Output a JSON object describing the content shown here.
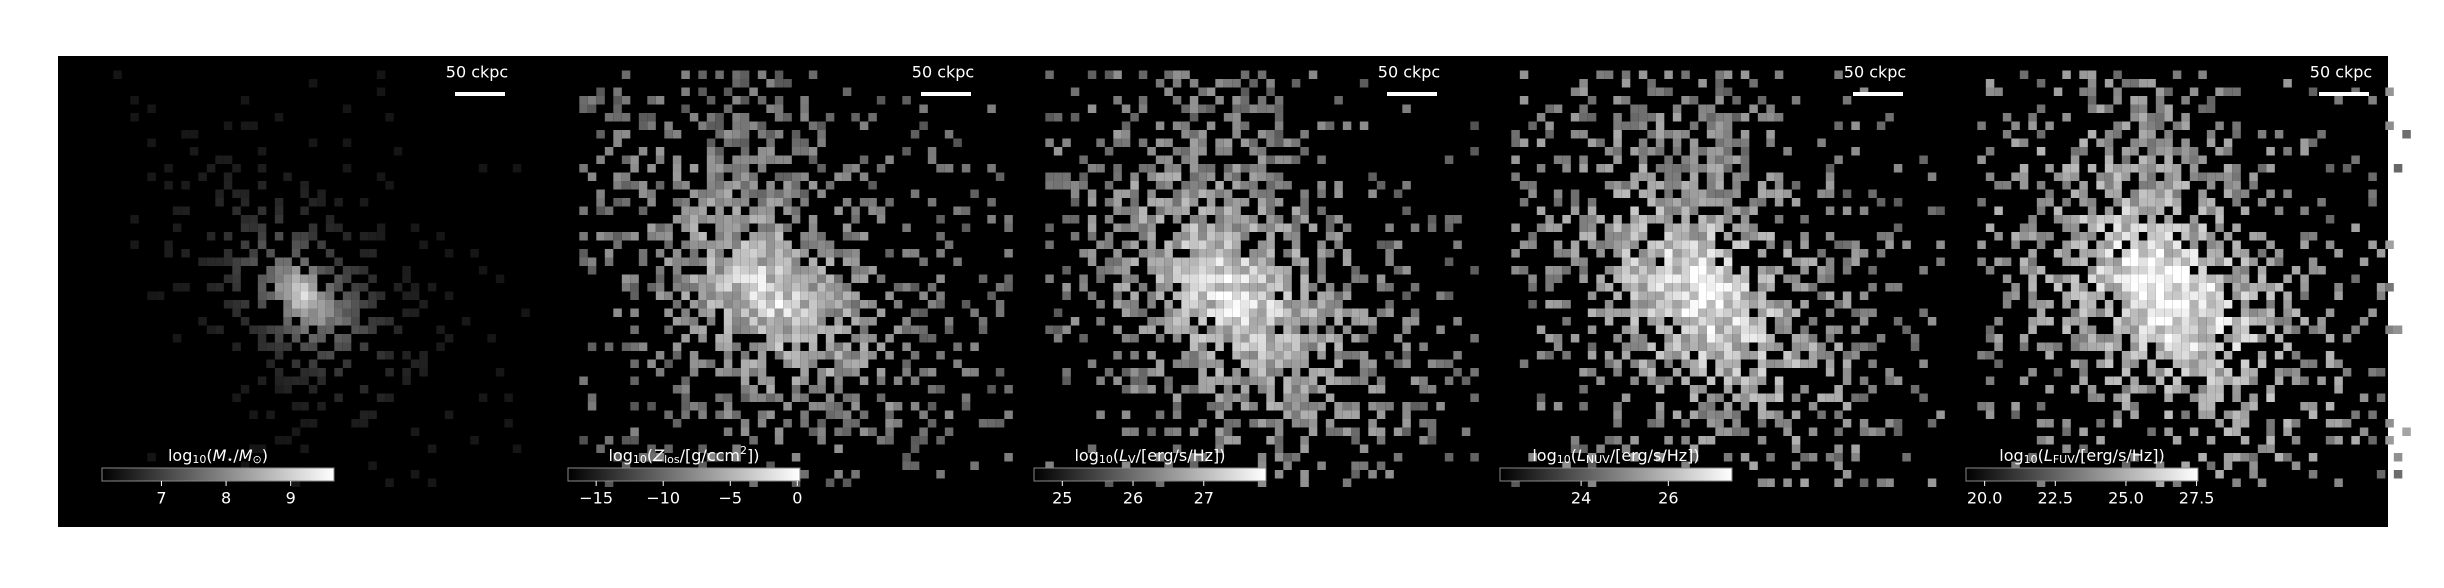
{
  "panels": [
    {
      "scale_bar": "50 ckpc",
      "colorbar": {
        "label": [
          {
            "text": "log"
          },
          {
            "text": "10",
            "style": "sub"
          },
          {
            "text": "("
          },
          {
            "text": "M",
            "style": "italic"
          },
          {
            "text": "⋆",
            "style": "sub"
          },
          {
            "text": "/"
          },
          {
            "text": "M",
            "style": "italic"
          },
          {
            "text": "⊙",
            "style": "sub"
          },
          {
            "text": ")"
          }
        ],
        "lim": [
          6.08,
          9.67
        ],
        "ticks": [
          7,
          8,
          9
        ]
      }
    },
    {
      "scale_bar": "50 ckpc",
      "colorbar": {
        "label": [
          {
            "text": "log"
          },
          {
            "text": "10",
            "style": "sub"
          },
          {
            "text": "("
          },
          {
            "text": "Z",
            "style": "italic"
          },
          {
            "text": "los",
            "style": "sub"
          },
          {
            "text": "/[g/ccm"
          },
          {
            "text": "2",
            "style": "sup"
          },
          {
            "text": "])"
          }
        ],
        "lim": [
          -17.1,
          0.2
        ],
        "ticks": [
          {
            "value": -15,
            "label": "−15"
          },
          {
            "value": -10,
            "label": "−10"
          },
          {
            "value": -5,
            "label": "−5"
          },
          0
        ]
      }
    },
    {
      "scale_bar": "50 ckpc",
      "colorbar": {
        "label": [
          {
            "text": "log"
          },
          {
            "text": "10",
            "style": "sub"
          },
          {
            "text": "("
          },
          {
            "text": "L",
            "style": "italic"
          },
          {
            "text": "V",
            "style": "sub"
          },
          {
            "text": "/[erg/s/Hz])"
          }
        ],
        "lim": [
          24.6,
          27.88
        ],
        "ticks": [
          25,
          26,
          27
        ]
      }
    },
    {
      "scale_bar": "50 ckpc",
      "colorbar": {
        "label": [
          {
            "text": "log"
          },
          {
            "text": "10",
            "style": "sub"
          },
          {
            "text": "("
          },
          {
            "text": "L",
            "style": "italic"
          },
          {
            "text": "NUV",
            "style": "sub"
          },
          {
            "text": "/[erg/s/Hz])"
          }
        ],
        "lim": [
          22.14,
          27.46
        ],
        "ticks": [
          24,
          26
        ]
      }
    },
    {
      "scale_bar": "50 ckpc",
      "colorbar": {
        "label": [
          {
            "text": "log"
          },
          {
            "text": "10",
            "style": "sub"
          },
          {
            "text": "("
          },
          {
            "text": "L",
            "style": "italic"
          },
          {
            "text": "FUV",
            "style": "sub"
          },
          {
            "text": "/[erg/s/Hz])"
          }
        ],
        "lim": [
          19.34,
          27.55
        ],
        "ticks": [
          {
            "value": 20,
            "label": "20.0"
          },
          22.5,
          {
            "value": 25,
            "label": "25.0"
          },
          27.5
        ]
      }
    }
  ]
}
